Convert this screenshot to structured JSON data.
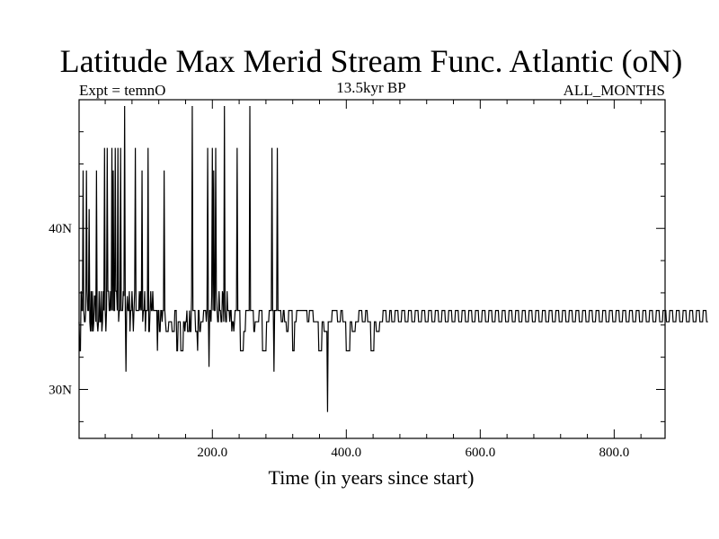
{
  "chart_data": {
    "type": "line",
    "title": "Latitude Max Merid Stream Func. Atlantic (oN)",
    "subtitle_left": "Expt = temnO",
    "subtitle_center": "13.5kyr BP",
    "subtitle_right": "ALL_MONTHS",
    "xlabel": "Time (in years since start)",
    "ylabel": "",
    "xlim": [
      1,
      876
    ],
    "ylim": [
      26.96,
      47.99
    ],
    "x_ticks": [
      200,
      400,
      600,
      800
    ],
    "x_tick_labels": [
      "200.0",
      "400.0",
      "600.0",
      "800.0"
    ],
    "x_minor_step": 40,
    "y_ticks": [
      30,
      40
    ],
    "y_tick_labels": [
      "30N",
      "40N"
    ],
    "y_minor_step": 2,
    "grid": false,
    "line_color": "#000000",
    "x_start": 1,
    "x_step": 1,
    "series": [
      {
        "values": [
          34.2,
          32.4,
          32.4,
          36.1,
          34.9,
          34.9,
          43.6,
          34.9,
          34.2,
          34.2,
          34.9,
          43.6,
          36.1,
          34.9,
          34.9,
          41.2,
          34.2,
          33.6,
          36.1,
          33.6,
          36.1,
          33.6,
          34.2,
          35.8,
          35.8,
          34.2,
          43.6,
          34.2,
          33.6,
          34.2,
          36.1,
          34.2,
          34.2,
          36.1,
          33.6,
          34.2,
          36.1,
          34.9,
          45.0,
          34.9,
          33.6,
          34.9,
          45.0,
          36.1,
          36.1,
          34.9,
          34.9,
          36.1,
          34.9,
          45.0,
          34.9,
          43.6,
          34.9,
          34.9,
          45.0,
          36.1,
          36.1,
          34.9,
          45.0,
          34.2,
          34.9,
          34.9,
          45.0,
          34.9,
          34.9,
          34.9,
          36.1,
          35.8,
          47.6,
          34.9,
          31.1,
          34.9,
          35.8,
          34.9,
          34.9,
          36.1,
          33.6,
          34.9,
          34.9,
          36.1,
          34.9,
          33.6,
          34.9,
          36.1,
          45.0,
          34.9,
          34.9,
          34.9,
          34.9,
          34.9,
          36.1,
          34.9,
          36.1,
          34.9,
          43.6,
          34.2,
          34.9,
          34.9,
          36.1,
          33.6,
          34.9,
          34.9,
          34.9,
          45.0,
          33.6,
          33.6,
          34.9,
          36.1,
          34.9,
          34.9,
          36.1,
          34.9,
          34.9,
          34.9,
          34.9,
          34.9,
          34.9,
          32.4,
          34.9,
          34.9,
          33.6,
          33.6,
          34.9,
          34.9,
          34.2,
          34.9,
          34.9,
          43.6,
          34.9,
          34.2,
          33.6,
          33.6,
          33.6,
          33.6,
          34.2,
          34.2,
          34.2,
          34.2,
          34.2,
          33.6,
          33.6,
          33.6,
          33.6,
          34.9,
          34.9,
          34.9,
          32.4,
          32.4,
          34.2,
          34.2,
          34.2,
          34.2,
          32.4,
          32.4,
          32.4,
          32.4,
          34.2,
          34.2,
          33.6,
          34.2,
          34.2,
          34.9,
          33.6,
          33.6,
          33.6,
          34.9,
          33.6,
          33.6,
          35.8,
          47.6,
          34.9,
          34.9,
          34.9,
          34.9,
          33.6,
          33.6,
          33.6,
          32.4,
          34.9,
          34.9,
          33.6,
          33.6,
          34.2,
          34.2,
          34.2,
          34.2,
          34.9,
          34.9,
          34.9,
          34.9,
          34.2,
          34.9,
          45.0,
          34.9,
          31.4,
          34.9,
          34.9,
          34.2,
          35.8,
          45.0,
          34.9,
          43.6,
          34.9,
          34.9,
          45.0,
          36.1,
          34.9,
          34.2,
          34.2,
          36.1,
          34.9,
          34.9,
          34.2,
          34.2,
          36.1,
          35.8,
          34.2,
          47.6,
          34.9,
          34.2,
          34.2,
          36.1,
          34.9,
          34.9,
          34.9,
          34.2,
          34.9,
          34.9,
          33.6,
          34.2,
          34.2,
          33.6,
          34.2,
          34.9,
          34.9,
          34.9,
          45.0,
          34.9,
          34.9,
          34.9,
          34.9,
          32.4,
          32.4,
          32.4,
          32.4,
          32.4,
          33.6,
          33.6,
          33.6,
          34.9,
          34.9,
          34.9,
          34.9,
          34.9,
          34.9,
          47.6,
          34.9,
          34.9,
          34.9,
          34.9,
          34.9,
          33.6,
          33.6,
          34.2,
          34.2,
          34.2,
          34.2,
          34.2,
          34.2,
          34.9,
          34.9,
          34.9,
          34.9,
          34.9,
          32.4,
          32.4,
          32.4,
          32.4,
          32.4,
          32.4,
          34.2,
          34.2,
          34.2,
          34.2,
          34.9,
          34.9,
          34.9,
          34.9,
          45.0,
          34.9,
          34.9,
          31.1,
          34.9,
          34.9,
          34.9,
          34.9,
          45.0,
          34.9,
          34.9,
          34.9,
          34.9,
          34.9,
          34.2,
          34.2,
          34.2,
          34.9,
          34.9,
          34.2,
          34.2,
          34.2,
          33.6,
          33.6,
          33.6,
          34.9,
          34.9,
          34.9,
          34.9,
          34.9,
          34.9,
          32.4,
          32.4,
          32.4,
          34.2,
          34.2,
          34.2,
          34.9,
          34.9,
          34.9,
          34.9,
          34.9,
          34.9,
          34.9,
          34.9,
          34.9,
          34.9,
          34.9,
          34.9,
          34.9,
          34.9,
          34.9,
          34.9,
          34.2,
          34.2,
          34.2,
          34.9,
          34.9,
          34.9,
          34.9,
          34.9,
          34.9,
          34.2,
          34.2,
          34.2,
          34.2,
          34.2,
          34.2,
          34.2,
          34.2,
          32.4,
          32.4,
          32.4,
          32.4,
          32.4,
          34.2,
          34.2,
          34.2,
          33.6,
          33.6,
          33.6,
          33.6,
          33.6,
          28.6,
          34.2,
          34.2,
          34.2,
          34.2,
          34.2,
          34.2,
          34.9,
          34.9,
          34.9,
          34.9,
          34.9,
          34.9,
          34.9,
          34.9,
          34.2,
          34.2,
          34.2,
          34.2,
          34.2,
          34.9,
          34.9,
          34.9,
          34.2,
          34.2,
          34.2,
          34.2,
          34.2,
          32.4,
          32.4,
          32.4,
          32.4,
          32.4,
          32.4,
          34.2,
          34.2,
          34.2,
          33.6,
          33.6,
          33.6,
          33.6,
          33.6,
          34.2,
          34.2,
          34.2,
          34.2,
          34.2,
          34.9,
          34.9,
          34.9,
          34.9,
          34.9,
          34.2,
          34.2,
          34.2,
          34.2,
          34.2,
          34.9,
          34.9,
          34.9,
          34.2,
          34.2,
          34.2,
          34.2,
          34.2,
          32.4,
          32.4,
          32.4,
          32.4,
          32.4,
          34.2,
          34.2,
          34.2,
          33.6,
          33.6,
          33.6,
          33.6,
          33.6,
          34.2,
          34.2,
          34.2,
          34.2,
          34.2,
          34.9,
          34.9,
          34.9,
          34.9,
          34.9,
          34.2,
          34.2,
          34.2,
          34.2,
          34.2,
          34.9,
          34.9,
          34.9,
          34.2,
          34.2,
          34.2,
          34.2,
          34.2,
          34.9,
          34.9,
          34.9,
          34.9,
          34.9,
          34.2,
          34.2,
          34.2,
          34.2,
          34.2,
          34.9,
          34.9,
          34.9,
          34.9,
          34.9,
          34.2,
          34.2,
          34.2,
          34.2,
          34.2,
          34.9,
          34.9,
          34.9,
          34.9,
          34.9,
          34.2,
          34.2,
          34.2,
          34.2,
          34.2,
          34.9,
          34.9,
          34.9,
          34.9,
          34.9,
          34.2,
          34.2,
          34.2,
          34.2,
          34.2,
          34.9,
          34.9,
          34.9,
          34.9,
          34.9,
          34.2,
          34.2,
          34.2,
          34.2,
          34.2,
          34.9,
          34.9,
          34.9,
          34.9,
          34.9,
          34.2,
          34.2,
          34.2,
          34.2,
          34.2,
          34.9,
          34.9,
          34.9,
          34.9,
          34.9,
          34.2,
          34.2,
          34.2,
          34.2,
          34.2,
          34.9,
          34.9,
          34.9,
          34.9,
          34.9,
          34.2,
          34.2,
          34.2,
          34.2,
          34.2,
          34.9,
          34.9,
          34.9,
          34.9,
          34.9,
          34.2,
          34.2,
          34.2,
          34.2,
          34.2,
          34.9,
          34.9,
          34.9,
          34.9,
          34.9,
          34.2,
          34.2,
          34.2,
          34.2,
          34.2,
          34.9,
          34.9,
          34.9,
          34.9,
          34.9,
          34.2,
          34.2,
          34.2,
          34.2,
          34.2,
          34.9,
          34.9,
          34.9,
          34.9,
          34.9,
          34.2,
          34.2,
          34.2,
          34.2,
          34.2,
          34.9,
          34.9,
          34.9,
          34.9,
          34.9,
          34.2,
          34.2,
          34.2,
          34.2,
          34.2,
          34.9,
          34.9,
          34.9,
          34.9,
          34.9,
          34.2,
          34.2,
          34.2,
          34.2,
          34.2,
          34.9,
          34.9,
          34.9,
          34.9,
          34.9,
          34.2,
          34.2,
          34.2,
          34.2,
          34.2,
          34.9,
          34.9,
          34.9,
          34.9,
          34.9,
          34.2,
          34.2,
          34.2,
          34.2,
          34.2,
          34.9,
          34.9,
          34.9,
          34.9,
          34.9,
          34.2,
          34.2,
          34.2,
          34.2,
          34.2,
          34.9,
          34.9,
          34.9,
          34.9,
          34.9,
          34.2,
          34.2,
          34.2,
          34.2,
          34.2,
          34.9,
          34.9,
          34.9,
          34.9,
          34.9,
          34.2,
          34.2,
          34.2,
          34.2,
          34.2,
          34.9,
          34.9,
          34.9,
          34.9,
          34.9,
          34.2,
          34.2,
          34.2,
          34.2,
          34.2,
          34.9,
          34.9,
          34.9,
          34.9,
          34.9,
          34.2,
          34.2,
          34.2,
          34.2,
          34.2,
          34.9,
          34.9,
          34.9,
          34.9,
          34.9,
          34.2,
          34.2,
          34.2,
          34.2,
          34.2,
          34.9,
          34.9,
          34.9,
          34.9,
          34.9,
          34.2,
          34.2,
          34.2,
          34.2,
          34.2,
          34.9,
          34.9,
          34.9,
          34.9,
          34.9,
          34.2,
          34.2,
          34.2,
          34.2,
          34.2,
          34.9,
          34.9,
          34.9,
          34.9,
          34.9,
          34.2,
          34.2,
          34.2,
          34.2,
          34.2,
          34.9,
          34.9,
          34.9,
          34.9,
          34.9,
          34.2,
          34.2,
          34.2,
          34.2,
          34.2,
          34.9,
          34.9,
          34.9,
          34.9,
          34.9,
          34.2,
          34.2,
          34.2,
          34.2,
          34.2,
          34.9,
          34.9,
          34.9,
          34.9,
          34.9,
          34.2,
          34.2,
          34.2,
          34.2,
          34.2,
          34.9,
          34.9,
          34.9,
          34.9,
          34.9,
          34.2,
          34.2,
          34.2,
          34.2,
          34.2,
          34.9,
          34.9,
          34.9,
          34.9,
          34.9,
          34.2,
          34.2,
          34.2,
          34.2,
          34.2,
          34.9,
          34.9,
          34.9,
          34.9,
          34.9,
          34.2,
          34.2,
          34.2,
          34.2,
          34.2,
          34.9,
          34.9,
          34.9,
          34.9,
          34.9,
          34.2,
          34.2,
          34.2,
          34.2,
          34.2,
          34.9,
          34.9,
          34.9,
          34.9,
          34.9,
          34.2,
          34.2,
          34.2,
          34.2,
          34.2,
          34.9,
          34.9,
          34.9,
          34.9,
          34.9,
          34.2,
          34.2,
          34.2,
          34.2,
          34.2,
          34.9,
          34.9,
          34.9,
          34.9,
          34.9,
          34.2,
          34.2,
          34.2,
          34.2,
          34.2,
          34.9,
          34.9,
          34.9,
          34.9,
          34.9,
          34.2,
          34.2,
          34.2,
          34.2,
          34.2,
          34.9,
          34.9,
          34.9,
          34.9,
          34.9,
          34.2,
          34.2,
          34.2,
          34.2,
          34.2,
          34.9,
          34.9,
          34.9,
          34.9,
          34.9,
          34.2,
          34.2,
          34.2,
          34.2,
          34.2,
          34.9,
          34.9,
          34.9,
          34.9,
          34.9,
          34.2,
          34.2,
          34.2,
          34.2,
          34.2,
          34.9,
          34.9,
          34.9,
          34.9,
          34.9,
          34.2,
          34.2,
          34.2,
          34.2,
          34.2,
          34.9,
          34.9,
          34.9,
          34.9,
          34.9,
          34.2,
          34.2,
          34.2,
          34.2,
          34.2,
          34.9,
          34.9,
          34.9,
          34.9,
          34.9,
          34.2,
          34.2,
          34.2,
          34.2,
          34.2,
          34.9,
          34.9,
          34.9,
          34.9,
          34.9,
          34.2,
          34.2,
          34.2,
          34.2,
          34.2,
          34.9,
          34.9,
          34.9,
          34.9,
          34.9,
          34.2,
          34.2,
          34.2,
          34.2,
          34.2,
          34.9,
          34.9,
          34.9,
          34.9,
          34.9,
          34.2,
          34.2,
          34.2,
          34.2,
          34.2,
          34.9,
          34.9,
          34.9,
          34.9,
          34.9,
          34.2,
          34.2,
          34.2,
          34.2,
          34.2,
          34.9,
          34.9,
          34.9,
          34.9,
          34.9,
          34.2,
          34.2,
          34.2
        ]
      }
    ]
  }
}
